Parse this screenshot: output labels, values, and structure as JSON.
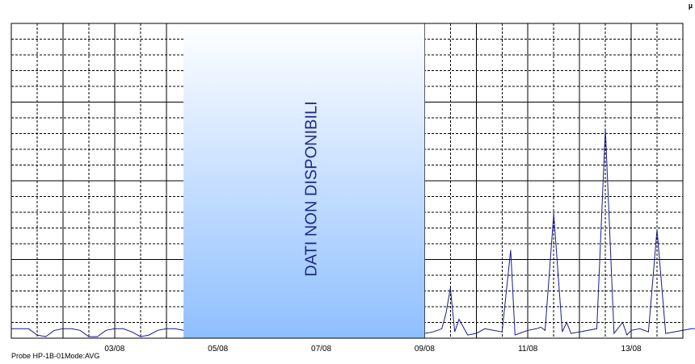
{
  "chart_data": {
    "type": "line",
    "unit_label": "µ",
    "x_range": [
      "01/08",
      "14/08"
    ],
    "xticks": [
      "03/08",
      "05/08",
      "07/08",
      "09/08",
      "11/08",
      "13/08"
    ],
    "ylim": [
      0,
      20
    ],
    "grid": true,
    "no_data": {
      "label": "DATI NON DISPONIBILI",
      "from": "04/08 08:00",
      "to": "09/08 00:00"
    },
    "series": [
      {
        "color": "#1a1a8c",
        "segments": [
          {
            "x": [
              "01/08 00:00",
              "01/08 04:00",
              "01/08 08:00",
              "01/08 12:00",
              "01/08 16:00",
              "01/08 20:00",
              "02/08 00:00",
              "02/08 04:00",
              "02/08 08:00",
              "02/08 12:00",
              "02/08 16:00",
              "02/08 20:00",
              "03/08 00:00",
              "03/08 04:00",
              "03/08 08:00",
              "03/08 12:00",
              "03/08 16:00",
              "03/08 20:00",
              "04/08 00:00",
              "04/08 04:00",
              "04/08 08:00"
            ],
            "y": [
              0.6,
              0.6,
              0.6,
              0.2,
              0.1,
              0.5,
              0.6,
              0.6,
              0.5,
              0.1,
              0.1,
              0.5,
              0.6,
              0.6,
              0.4,
              0.1,
              0.2,
              0.5,
              0.6,
              0.6,
              0.5
            ]
          },
          {
            "x": [
              "09/08 00:00",
              "09/08 04:00",
              "09/08 08:00",
              "09/08 10:00",
              "09/08 12:00",
              "09/08 14:00",
              "09/08 16:00",
              "09/08 20:00",
              "10/08 00:00",
              "10/08 04:00",
              "10/08 08:00",
              "10/08 12:00",
              "10/08 16:00",
              "10/08 18:00",
              "10/08 20:00",
              "11/08 00:00",
              "11/08 04:00",
              "11/08 06:00",
              "11/08 08:00",
              "11/08 12:00",
              "11/08 16:00",
              "11/08 18:00",
              "11/08 20:00",
              "12/08 00:00",
              "12/08 04:00",
              "12/08 08:00",
              "12/08 12:00",
              "12/08 16:00",
              "12/08 20:00",
              "12/08 22:00",
              "13/08 00:00",
              "13/08 04:00",
              "13/08 08:00",
              "13/08 12:00",
              "13/08 16:00",
              "13/08 20:00",
              "14/08 00:00",
              "14/08 04:00",
              "14/08 08:00",
              "14/08 12:00",
              "14/08 16:00"
            ],
            "y": [
              0.3,
              0.4,
              0.6,
              1.6,
              3.2,
              0.4,
              1.2,
              0.2,
              0.3,
              0.6,
              0.5,
              0.4,
              5.6,
              0.2,
              0.3,
              0.5,
              0.6,
              0.7,
              0.5,
              7.9,
              0.4,
              1.0,
              0.3,
              0.4,
              0.5,
              0.6,
              13.3,
              0.3,
              1.0,
              0.2,
              0.5,
              0.6,
              0.4,
              6.9,
              0.3,
              0.4,
              0.5,
              0.6,
              0.6,
              0.5,
              0.5
            ]
          }
        ]
      }
    ]
  },
  "footer": {
    "probe": "Probe HP-1B-01",
    "mode": "Mode:AVG"
  }
}
